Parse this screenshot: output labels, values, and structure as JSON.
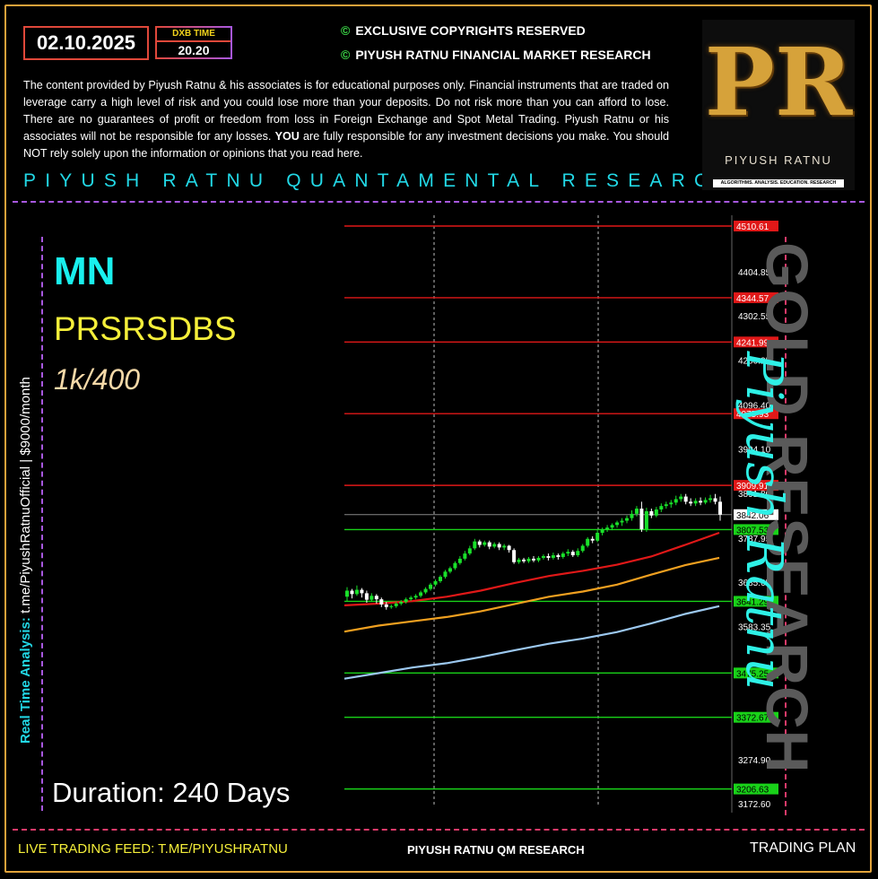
{
  "header": {
    "date": "02.10.2025",
    "time_label": "DXB TIME",
    "time_value": "20.20",
    "copyright_1": "EXCLUSIVE COPYRIGHTS RESERVED",
    "copyright_2": "PIYUSH RATNU FINANCIAL MARKET RESEARCH",
    "copyright_symbol": "©",
    "disclaimer_1": "The content provided by Piyush Ratnu & his associates is for educational purposes only. Financial instruments that are traded on leverage carry a high level of risk and you could lose more than your deposits. Do not risk more than you can afford to lose. There are no guarantees of profit or freedom from loss in Foreign Exchange and Spot Metal Trading. Piyush Ratnu or his associates will not be responsible for any losses.",
    "disclaimer_bold": "YOU",
    "disclaimer_2": "are fully responsible for any investment decisions you make. You should NOT rely solely upon the information or opinions that you read here.",
    "banner": "PIYUSH RATNU QUANTAMENTAL RESEARCH"
  },
  "logo": {
    "letters": "PR",
    "name": "PIYUSH RATNU",
    "tagline": "ALGORITHMS. ANALYSIS. EDUCATION. RESEARCH"
  },
  "side": {
    "label": "Real Time Analysis:",
    "value": "t.me/PiyushRatnuOfficial | $9000/month"
  },
  "plan": {
    "code": "MN",
    "strategy": "PRSRSDBS",
    "ratio": "1k/400",
    "duration": "Duration: 240 Days"
  },
  "watermark": {
    "text": "GOLD RESEARCH",
    "signature": "Piyush Ratnu"
  },
  "footer": {
    "left": "LIVE TRADING FEED: T.ME/PIYUSHRATNU",
    "center": "PIYUSH RATNU QM RESEARCH",
    "right": "TRADING PLAN"
  },
  "colors": {
    "accent_cyan": "#22d8e6",
    "resistance": "#e01818",
    "support": "#19d219",
    "frame": "#e0a23a"
  },
  "chart_data": {
    "type": "line",
    "y_axis_ticks": [
      4404.85,
      4302.55,
      4200.25,
      4096.4,
      3994.1,
      3891.8,
      3787.95,
      3685.65,
      3583.35,
      3274.9,
      3172.6
    ],
    "ylim": [
      3172.6,
      4510.61
    ],
    "current_price": 3842.06,
    "resistance_levels": [
      4510.61,
      4344.57,
      4241.99,
      4075.93,
      3909.91
    ],
    "support_levels": [
      3807.53,
      3641.29,
      3475.25,
      3372.67,
      3206.63
    ],
    "moving_averages": [
      {
        "color": "#e01818",
        "values": [
          3632,
          3636,
          3642,
          3652,
          3666,
          3684,
          3700,
          3712,
          3726,
          3745,
          3772,
          3800
        ]
      },
      {
        "color": "#f0a020",
        "values": [
          3571,
          3585,
          3595,
          3605,
          3618,
          3635,
          3652,
          3664,
          3680,
          3703,
          3725,
          3742
        ]
      },
      {
        "color": "#9cc8f0",
        "values": [
          3462,
          3475,
          3488,
          3498,
          3512,
          3528,
          3543,
          3555,
          3570,
          3590,
          3612,
          3630
        ]
      }
    ],
    "candles": [
      [
        3652,
        3666,
        3642,
        3674
      ],
      [
        3666,
        3658,
        3648,
        3670
      ],
      [
        3658,
        3668,
        3654,
        3678
      ],
      [
        3668,
        3660,
        3650,
        3672
      ],
      [
        3660,
        3645,
        3638,
        3666
      ],
      [
        3645,
        3654,
        3640,
        3660
      ],
      [
        3654,
        3646,
        3636,
        3658
      ],
      [
        3646,
        3634,
        3628,
        3650
      ],
      [
        3634,
        3628,
        3622,
        3640
      ],
      [
        3628,
        3630,
        3624,
        3634
      ],
      [
        3630,
        3636,
        3626,
        3640
      ],
      [
        3636,
        3640,
        3632,
        3644
      ],
      [
        3640,
        3646,
        3636,
        3650
      ],
      [
        3646,
        3650,
        3642,
        3654
      ],
      [
        3650,
        3654,
        3646,
        3658
      ],
      [
        3654,
        3662,
        3650,
        3666
      ],
      [
        3662,
        3670,
        3658,
        3674
      ],
      [
        3670,
        3680,
        3666,
        3684
      ],
      [
        3680,
        3688,
        3676,
        3692
      ],
      [
        3688,
        3698,
        3684,
        3702
      ],
      [
        3698,
        3710,
        3694,
        3714
      ],
      [
        3710,
        3718,
        3706,
        3722
      ],
      [
        3718,
        3730,
        3714,
        3734
      ],
      [
        3730,
        3740,
        3726,
        3746
      ],
      [
        3740,
        3752,
        3736,
        3758
      ],
      [
        3752,
        3764,
        3748,
        3770
      ],
      [
        3764,
        3780,
        3760,
        3786
      ],
      [
        3780,
        3772,
        3766,
        3784
      ],
      [
        3772,
        3778,
        3768,
        3782
      ],
      [
        3778,
        3768,
        3762,
        3782
      ],
      [
        3768,
        3774,
        3764,
        3778
      ],
      [
        3774,
        3766,
        3760,
        3778
      ],
      [
        3766,
        3770,
        3760,
        3774
      ],
      [
        3770,
        3760,
        3754,
        3772
      ],
      [
        3760,
        3732,
        3728,
        3764
      ],
      [
        3732,
        3738,
        3728,
        3742
      ],
      [
        3738,
        3734,
        3730,
        3742
      ],
      [
        3734,
        3740,
        3730,
        3744
      ],
      [
        3740,
        3736,
        3732,
        3746
      ],
      [
        3736,
        3742,
        3732,
        3746
      ],
      [
        3742,
        3746,
        3738,
        3750
      ],
      [
        3746,
        3742,
        3736,
        3752
      ],
      [
        3742,
        3748,
        3738,
        3754
      ],
      [
        3748,
        3744,
        3738,
        3752
      ],
      [
        3744,
        3752,
        3740,
        3756
      ],
      [
        3752,
        3756,
        3746,
        3762
      ],
      [
        3756,
        3748,
        3744,
        3760
      ],
      [
        3748,
        3758,
        3744,
        3764
      ],
      [
        3758,
        3770,
        3754,
        3774
      ],
      [
        3770,
        3786,
        3766,
        3790
      ],
      [
        3786,
        3782,
        3776,
        3792
      ],
      [
        3782,
        3800,
        3778,
        3806
      ],
      [
        3800,
        3808,
        3794,
        3812
      ],
      [
        3808,
        3812,
        3802,
        3818
      ],
      [
        3812,
        3818,
        3806,
        3822
      ],
      [
        3818,
        3824,
        3812,
        3828
      ],
      [
        3824,
        3828,
        3816,
        3834
      ],
      [
        3828,
        3834,
        3822,
        3840
      ],
      [
        3834,
        3844,
        3828,
        3852
      ],
      [
        3844,
        3856,
        3838,
        3862
      ],
      [
        3856,
        3808,
        3802,
        3872
      ],
      [
        3808,
        3850,
        3802,
        3858
      ],
      [
        3850,
        3840,
        3834,
        3856
      ],
      [
        3840,
        3854,
        3836,
        3860
      ],
      [
        3854,
        3862,
        3848,
        3868
      ],
      [
        3862,
        3866,
        3856,
        3872
      ],
      [
        3866,
        3870,
        3858,
        3876
      ],
      [
        3870,
        3878,
        3864,
        3886
      ],
      [
        3878,
        3884,
        3872,
        3890
      ],
      [
        3884,
        3872,
        3866,
        3890
      ],
      [
        3872,
        3868,
        3862,
        3880
      ],
      [
        3868,
        3874,
        3862,
        3880
      ],
      [
        3874,
        3870,
        3864,
        3882
      ],
      [
        3870,
        3876,
        3866,
        3882
      ],
      [
        3876,
        3880,
        3870,
        3888
      ],
      [
        3880,
        3872,
        3866,
        3890
      ],
      [
        3872,
        3842,
        3828,
        3884
      ]
    ]
  }
}
